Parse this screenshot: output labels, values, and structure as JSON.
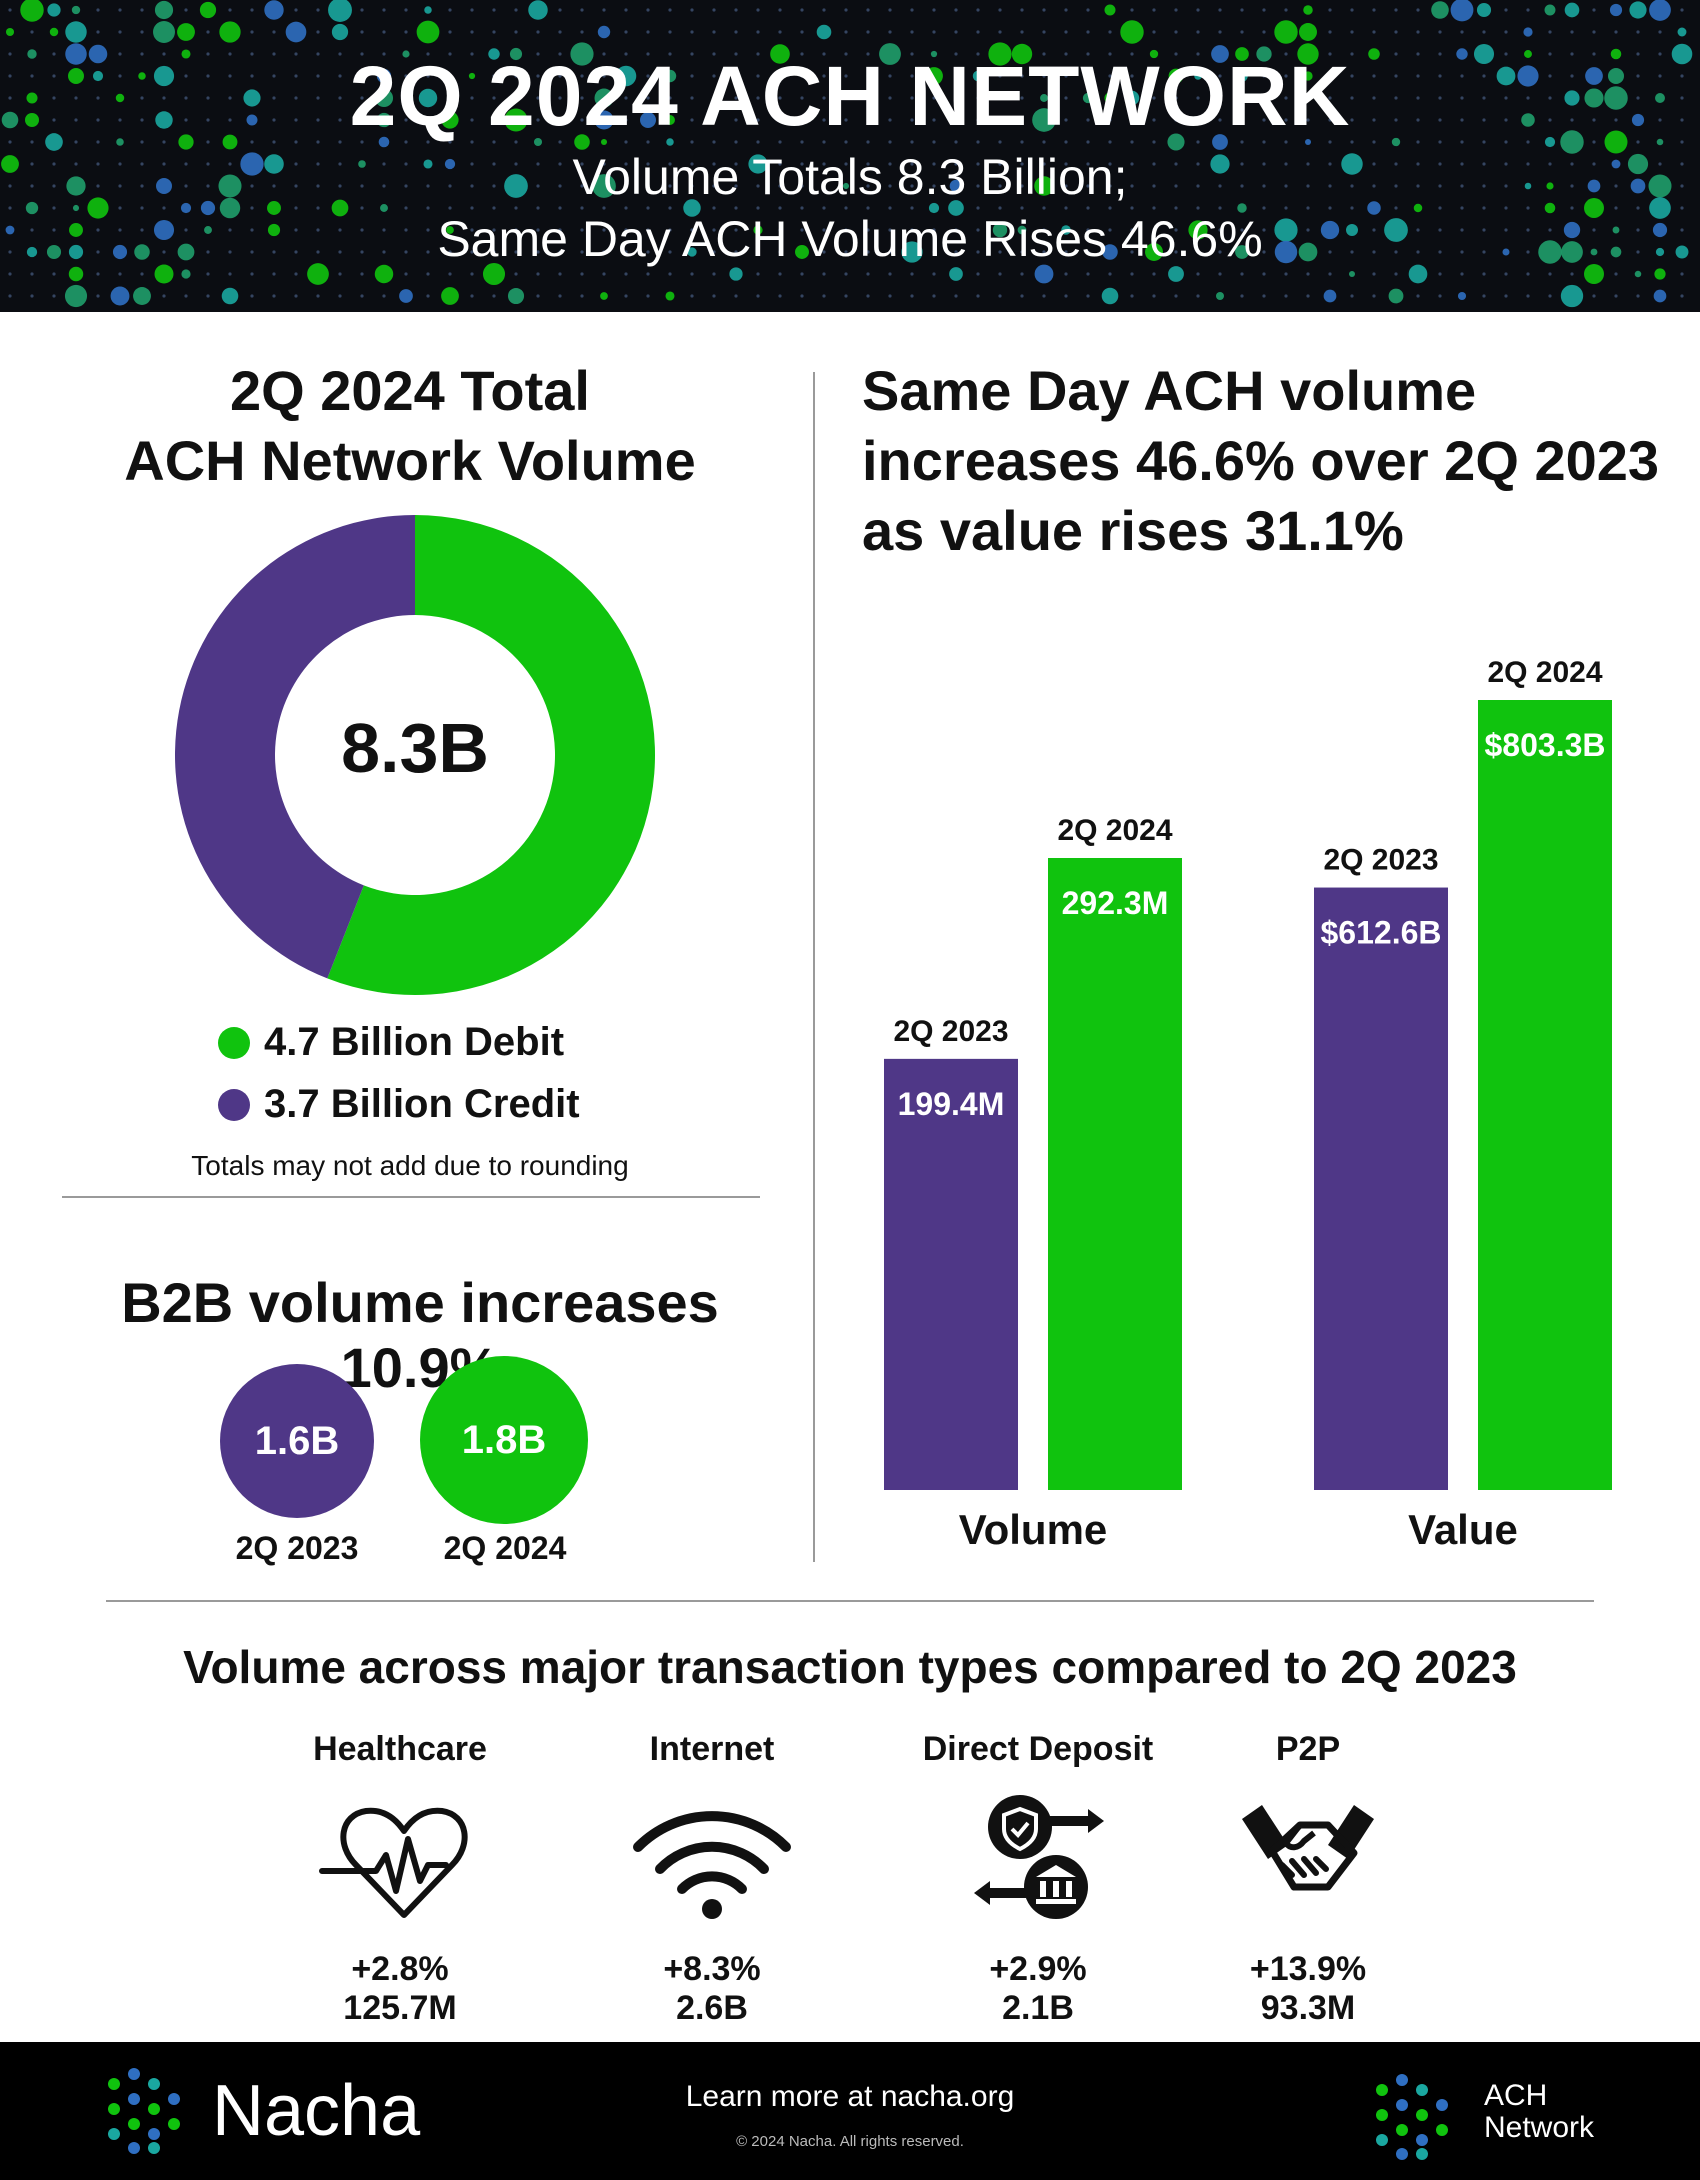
{
  "header": {
    "title": "2Q 2024 ACH NETWORK",
    "subtitle_line1": "Volume Totals 8.3 Billion;",
    "subtitle_line2": "Same Day ACH Volume Rises 46.6%"
  },
  "total_volume": {
    "title_line1": "2Q 2024 Total",
    "title_line2": "ACH Network Volume",
    "center_label": "8.3B",
    "legend": [
      {
        "label": "4.7 Billion Debit",
        "color": "#10c30e"
      },
      {
        "label": "3.7 Billion Credit",
        "color": "#4f3787"
      }
    ],
    "note": "Totals may not add due to rounding"
  },
  "b2b": {
    "title": "B2B volume increases 10.9%",
    "items": [
      {
        "value_label": "1.6B",
        "period": "2Q 2023",
        "color": "#4f3787"
      },
      {
        "value_label": "1.8B",
        "period": "2Q 2024",
        "color": "#10c30e"
      }
    ]
  },
  "same_day": {
    "title_line1": "Same Day ACH volume",
    "title_line2": "increases 46.6% over 2Q 2023",
    "title_line3": "as value rises 31.1%"
  },
  "transaction_types": {
    "title": "Volume across major transaction types compared to 2Q 2023",
    "items": [
      {
        "name": "Healthcare",
        "icon": "heart-pulse-icon",
        "change": "+2.8%",
        "volume": "125.7M"
      },
      {
        "name": "Internet",
        "icon": "wifi-icon",
        "change": "+8.3%",
        "volume": "2.6B"
      },
      {
        "name": "Direct Deposit",
        "icon": "bank-transfer-icon",
        "change": "+2.9%",
        "volume": "2.1B"
      },
      {
        "name": "P2P",
        "icon": "handshake-icon",
        "change": "+13.9%",
        "volume": "93.3M"
      }
    ]
  },
  "footer": {
    "brand": "Nacha",
    "learn_more": "Learn more at nacha.org",
    "copyright": "© 2024 Nacha. All rights reserved.",
    "ach_line1": "ACH",
    "ach_line2": "Network"
  },
  "colors": {
    "green": "#10c30e",
    "purple": "#4f3787",
    "header_bg": "#0b0d12"
  },
  "chart_data": [
    {
      "type": "pie",
      "categories": [
        "Debit",
        "Credit"
      ],
      "values": [
        4.7,
        3.7
      ],
      "units": "Billion",
      "colors": [
        "#10c30e",
        "#4f3787"
      ]
    },
    {
      "type": "bar",
      "groups": [
        {
          "name": "Volume",
          "bars": [
            {
              "period": "2Q 2023",
              "value": 199.4,
              "label": "199.4M",
              "color": "#4f3787"
            },
            {
              "period": "2Q 2024",
              "value": 292.3,
              "label": "292.3M",
              "color": "#10c30e"
            }
          ]
        },
        {
          "name": "Value",
          "bars": [
            {
              "period": "2Q 2023",
              "value": 612.6,
              "label": "$612.6B",
              "color": "#4f3787"
            },
            {
              "period": "2Q 2024",
              "value": 803.3,
              "label": "$803.3B",
              "color": "#10c30e"
            }
          ]
        }
      ]
    },
    {
      "type": "bar",
      "categories": [
        "2Q 2023",
        "2Q 2024"
      ],
      "values": [
        1.6,
        1.8
      ],
      "labels": [
        "1.6B",
        "1.8B"
      ]
    }
  ]
}
